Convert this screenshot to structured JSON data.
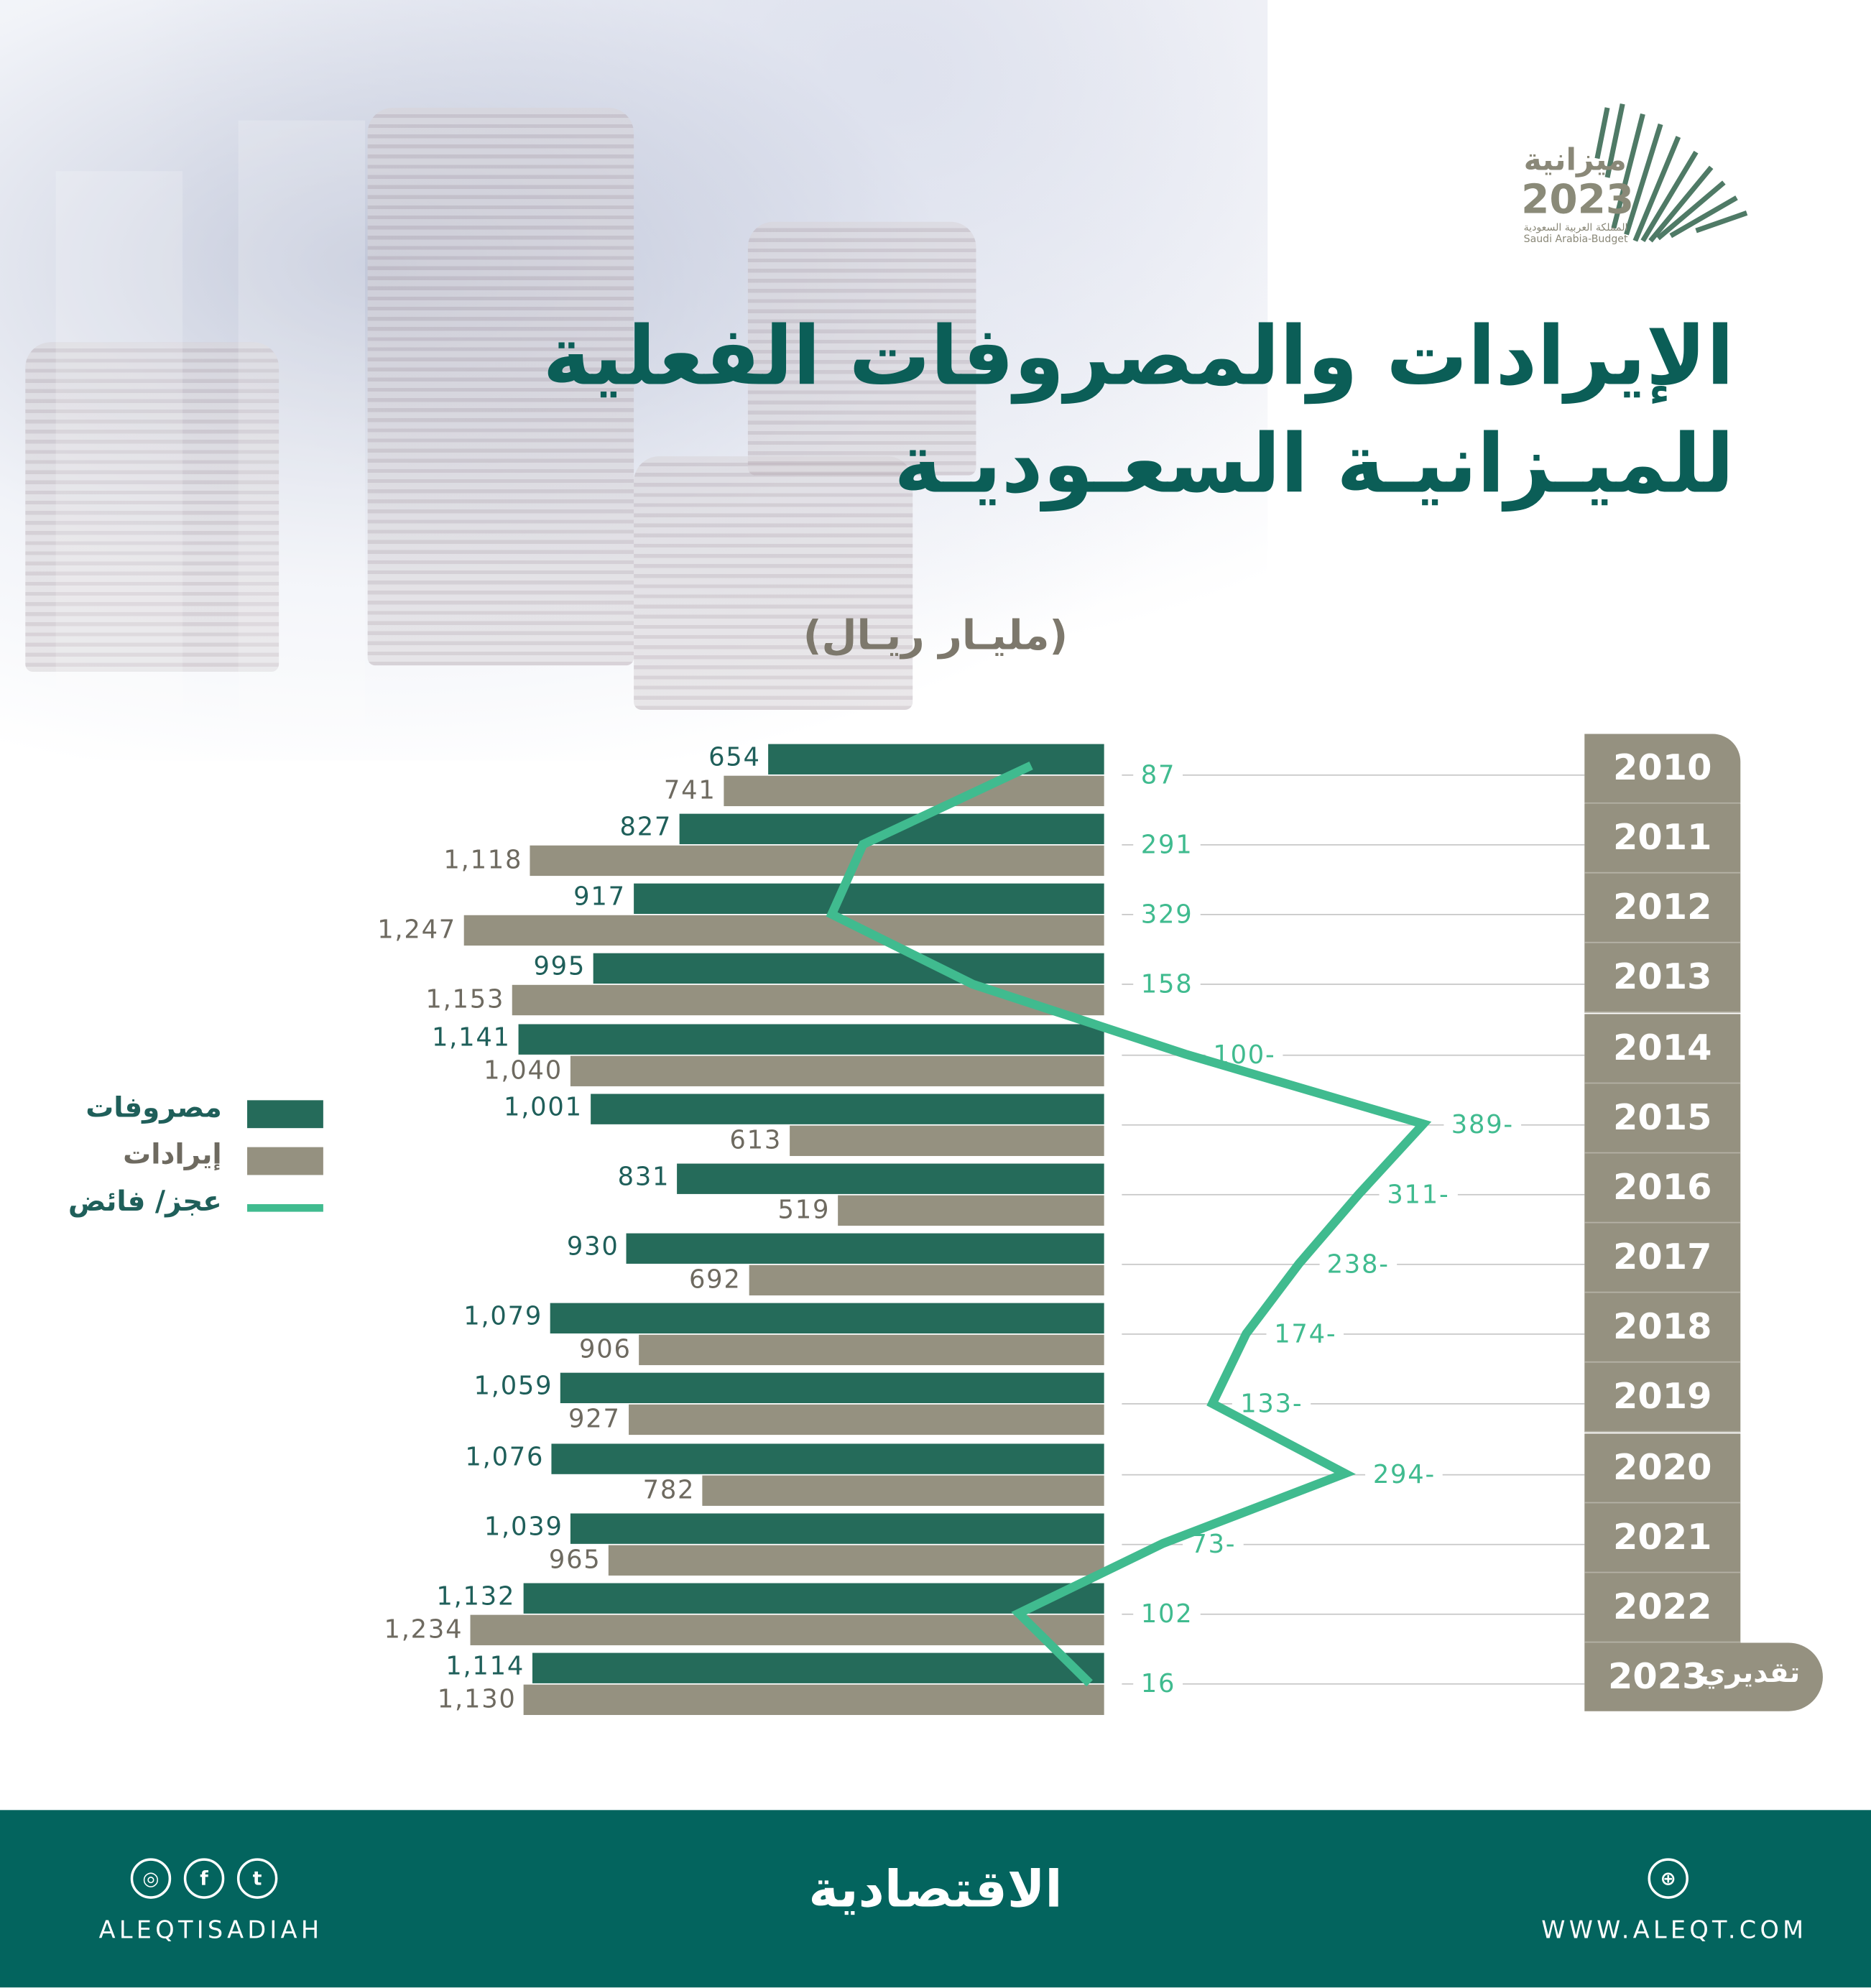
{
  "title_line1": "الإيرادات والمصروفات الفعلية",
  "title_line2": "للميـزانيـة السعـوديـة",
  "unit": "(مليـار ريـال)",
  "logo": {
    "text_ar": "ميزانية",
    "year": "2023",
    "sub_ar": "المملكة العربية السعودية",
    "sub_en": "Saudi Arabia-Budget"
  },
  "legend": [
    {
      "label": "مصروفات",
      "color": "#256b5a"
    },
    {
      "label": "إيرادات",
      "color": "#959180"
    },
    {
      "label": "عجز/ فائض",
      "color": "#40bb8f"
    }
  ],
  "estimate_label": "تقديري",
  "colors": {
    "expenses": "#256b5a",
    "revenues": "#959180",
    "balance": "#40bb8f",
    "title": "#0b5e57",
    "footer": "#03645e"
  },
  "chart_data": {
    "type": "bar",
    "orientation": "horizontal",
    "categories": [
      "2010",
      "2011",
      "2012",
      "2013",
      "2014",
      "2015",
      "2016",
      "2017",
      "2018",
      "2019",
      "2020",
      "2021",
      "2022",
      "2023"
    ],
    "series": [
      {
        "name": "مصروفات",
        "type": "bar",
        "values": [
          654,
          827,
          917,
          995,
          1141,
          1001,
          831,
          930,
          1079,
          1059,
          1076,
          1039,
          1132,
          1114
        ],
        "labels": [
          "654",
          "827",
          "917",
          "995",
          "1,141",
          "1,001",
          "831",
          "930",
          "1,079",
          "1,059",
          "1,076",
          "1,039",
          "1,132",
          "1,114"
        ]
      },
      {
        "name": "إيرادات",
        "type": "bar",
        "values": [
          741,
          1118,
          1247,
          1153,
          1040,
          613,
          519,
          692,
          906,
          927,
          782,
          965,
          1234,
          1130
        ],
        "labels": [
          "741",
          "1,118",
          "1,247",
          "1,153",
          "1,040",
          "613",
          "519",
          "692",
          "906",
          "927",
          "782",
          "965",
          "1,234",
          "1,130"
        ]
      },
      {
        "name": "عجز/ فائض",
        "type": "line",
        "values": [
          87,
          291,
          329,
          158,
          -100,
          -389,
          -311,
          -238,
          -174,
          -133,
          -294,
          -73,
          102,
          16
        ],
        "labels": [
          "87",
          "291",
          "329",
          "158",
          "100-",
          "389-",
          "311-",
          "238-",
          "174-",
          "133-",
          "294-",
          "73-",
          "102",
          "16"
        ]
      }
    ],
    "unit": "مليار ريال"
  },
  "footer": {
    "social_handle": "ALEQTISADIAH",
    "brand": "الاقتصادية",
    "website": "WWW.ALEQT.COM",
    "icons": [
      "instagram-icon",
      "facebook-icon",
      "twitter-icon",
      "globe-icon"
    ]
  }
}
